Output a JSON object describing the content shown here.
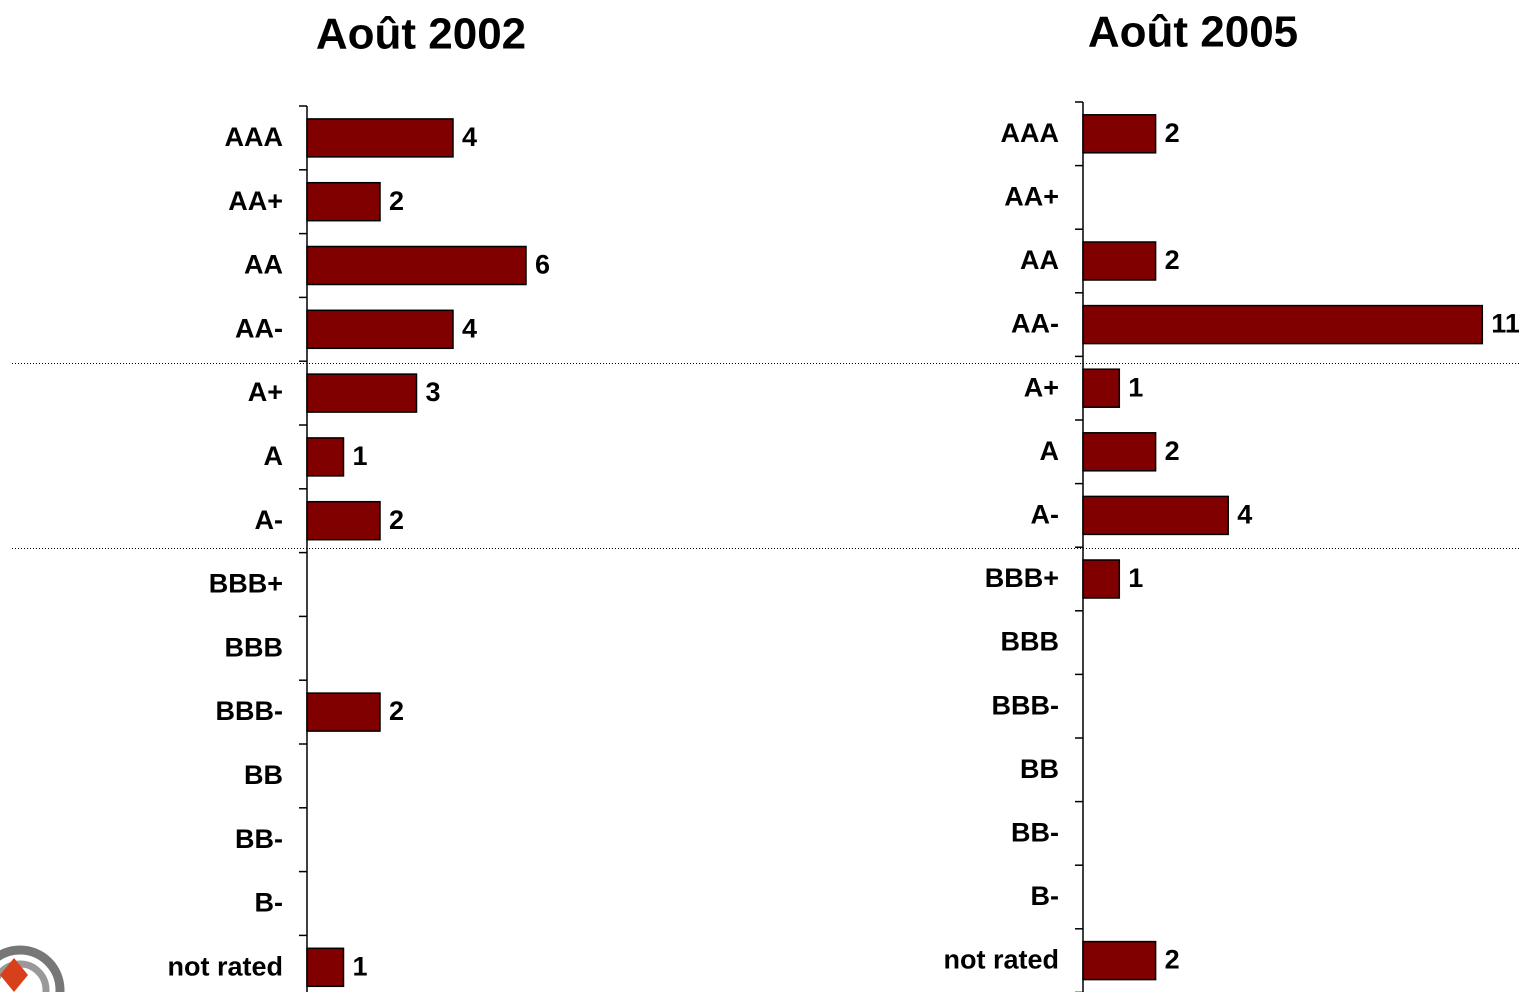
{
  "chart_data": [
    {
      "type": "bar",
      "horizontal": true,
      "title": "Août 2002",
      "color": "#800000",
      "categories": [
        "AAA",
        "AA+",
        "AA",
        "AA-",
        "A+",
        "A",
        "A-",
        "BBB+",
        "BBB",
        "BBB-",
        "BB",
        "BB-",
        "B-",
        "not rated"
      ],
      "values": [
        4,
        2,
        6,
        4,
        3,
        1,
        2,
        null,
        null,
        2,
        null,
        null,
        null,
        1
      ]
    },
    {
      "type": "bar",
      "horizontal": true,
      "title": "Août 2005",
      "color": "#800000",
      "categories": [
        "AAA",
        "AA+",
        "AA",
        "AA-",
        "A+",
        "A",
        "A-",
        "BBB+",
        "BBB",
        "BBB-",
        "BB",
        "BB-",
        "B-",
        "not rated"
      ],
      "values": [
        2,
        null,
        2,
        11,
        1,
        2,
        4,
        1,
        null,
        null,
        null,
        null,
        null,
        2
      ]
    }
  ]
}
